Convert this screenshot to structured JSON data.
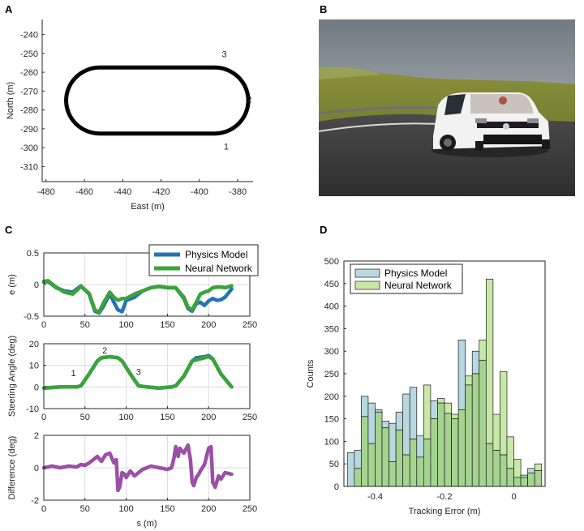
{
  "panels": {
    "A": {
      "letter": "A",
      "chart_data": {
        "type": "line",
        "xlabel": "East (m)",
        "ylabel": "North (m)",
        "xlim": [
          -482,
          -372
        ],
        "ylim": [
          -318,
          -232
        ],
        "xticks": [
          -480,
          -460,
          -440,
          -420,
          -400,
          -380
        ],
        "yticks": [
          -240,
          -250,
          -260,
          -270,
          -280,
          -290,
          -300,
          -310
        ],
        "track": {
          "straight_x": [
            -452,
            -392
          ],
          "center_y": -275,
          "radius": 17.5
        },
        "annotations": [
          {
            "text": "3",
            "x": -387,
            "y": -252
          },
          {
            "text": "2",
            "x": -374,
            "y": -276
          },
          {
            "text": "1",
            "x": -386,
            "y": -301
          }
        ],
        "grid": false
      }
    },
    "B": {
      "letter": "B",
      "photo": "race-car-on-track-photo",
      "colors": {
        "sky": "#8d969b",
        "grass": "#6d7a2a",
        "asphalt": "#3e3e3e",
        "car": "#f2f2f2"
      }
    },
    "C": {
      "letter": "C",
      "legend": [
        "Physics Model",
        "Neural Network"
      ],
      "colors": {
        "physics": "#2373b5",
        "neural": "#3aa33a",
        "difference": "#9b4fa6"
      },
      "chart_data": [
        {
          "type": "line",
          "xlabel": "",
          "ylabel": "e (m)",
          "xlim": [
            0,
            250
          ],
          "ylim": [
            -0.5,
            0.5
          ],
          "xticks": [
            0,
            50,
            100,
            150,
            200,
            250
          ],
          "yticks": [
            0.5,
            0,
            -0.5
          ],
          "grid": true,
          "legend_position": "top-right",
          "series": [
            {
              "name": "Physics Model",
              "x": [
                0,
                5,
                15,
                25,
                35,
                45,
                55,
                62,
                67,
                72,
                80,
                85,
                90,
                95,
                100,
                110,
                120,
                130,
                140,
                150,
                160,
                170,
                175,
                180,
                185,
                190,
                195,
                200,
                205,
                210,
                215,
                220,
                228
              ],
              "y": [
                0.04,
                0.05,
                -0.05,
                -0.1,
                -0.12,
                -0.02,
                -0.15,
                -0.42,
                -0.45,
                -0.35,
                -0.15,
                -0.28,
                -0.4,
                -0.43,
                -0.25,
                -0.2,
                -0.1,
                -0.05,
                -0.03,
                -0.05,
                -0.05,
                -0.22,
                -0.38,
                -0.42,
                -0.3,
                -0.28,
                -0.33,
                -0.26,
                -0.22,
                -0.25,
                -0.24,
                -0.2,
                -0.07
              ]
            },
            {
              "name": "Neural Network",
              "x": [
                0,
                5,
                15,
                25,
                35,
                45,
                55,
                62,
                67,
                72,
                80,
                85,
                90,
                95,
                100,
                110,
                120,
                130,
                140,
                150,
                160,
                170,
                175,
                180,
                185,
                190,
                195,
                200,
                205,
                210,
                215,
                220,
                228
              ],
              "y": [
                0.05,
                0.06,
                -0.04,
                -0.12,
                -0.15,
                -0.03,
                -0.14,
                -0.4,
                -0.44,
                -0.3,
                -0.12,
                -0.2,
                -0.25,
                -0.22,
                -0.22,
                -0.15,
                -0.1,
                -0.05,
                -0.03,
                -0.05,
                -0.05,
                -0.2,
                -0.36,
                -0.4,
                -0.28,
                -0.15,
                -0.12,
                -0.1,
                -0.05,
                -0.04,
                -0.04,
                -0.05,
                -0.02
              ]
            }
          ]
        },
        {
          "type": "line",
          "xlabel": "",
          "ylabel": "Steering Angle (deg)",
          "xlim": [
            0,
            250
          ],
          "ylim": [
            -10,
            20
          ],
          "xticks": [
            0,
            50,
            100,
            150,
            200,
            250
          ],
          "yticks": [
            20,
            10,
            0,
            -10
          ],
          "grid": true,
          "annotations": [
            {
              "text": "1",
              "x": 36,
              "y": 5
            },
            {
              "text": "2",
              "x": 74,
              "y": 15.5
            },
            {
              "text": "3",
              "x": 115,
              "y": 5.5
            }
          ],
          "series": [
            {
              "name": "Physics Model",
              "x": [
                0,
                20,
                40,
                45,
                55,
                65,
                70,
                80,
                90,
                95,
                105,
                115,
                125,
                140,
                155,
                160,
                170,
                180,
                185,
                195,
                200,
                205,
                215,
                228
              ],
              "y": [
                -0.5,
                0,
                0,
                0.5,
                6,
                12,
                13.5,
                14,
                13.5,
                12,
                6,
                0.5,
                0,
                -0.5,
                0,
                0.5,
                5,
                12,
                13.5,
                14,
                14.5,
                13,
                6,
                0
              ]
            },
            {
              "name": "Neural Network",
              "x": [
                0,
                20,
                40,
                45,
                55,
                65,
                70,
                80,
                90,
                95,
                105,
                115,
                125,
                140,
                155,
                160,
                170,
                180,
                185,
                195,
                200,
                205,
                215,
                228
              ],
              "y": [
                -0.5,
                0,
                0,
                0.5,
                6,
                12,
                13.5,
                14,
                13.5,
                12,
                6,
                0.5,
                0,
                -0.5,
                0,
                0.5,
                5,
                12,
                12.5,
                13.5,
                14,
                13,
                6,
                0
              ]
            }
          ]
        },
        {
          "type": "line",
          "xlabel": "s (m)",
          "ylabel": "Difference (deg)",
          "xlim": [
            0,
            250
          ],
          "ylim": [
            -2,
            2
          ],
          "xticks": [
            0,
            50,
            100,
            150,
            200,
            250
          ],
          "yticks": [
            2,
            0,
            -2
          ],
          "grid": true,
          "series": [
            {
              "name": "Difference",
              "x": [
                0,
                10,
                20,
                30,
                40,
                45,
                50,
                55,
                60,
                65,
                70,
                75,
                80,
                85,
                88,
                90,
                92,
                95,
                98,
                100,
                105,
                110,
                115,
                120,
                125,
                130,
                140,
                150,
                155,
                158,
                160,
                163,
                165,
                170,
                175,
                178,
                180,
                182,
                185,
                188,
                190,
                195,
                200,
                203,
                205,
                208,
                212,
                215,
                220,
                228
              ],
              "y": [
                0,
                0.1,
                0,
                0.1,
                0.05,
                0.2,
                0.15,
                0.3,
                0.5,
                0.7,
                0.4,
                0.8,
                0.9,
                0.3,
                0.5,
                -1.4,
                -1.2,
                -0.3,
                -0.4,
                -0.6,
                -0.2,
                -0.5,
                -0.3,
                -0.1,
                0,
                0.1,
                0,
                -0.1,
                0,
                0.6,
                1.3,
                0.7,
                1.2,
                0.9,
                1.4,
                0.5,
                -0.9,
                -1.1,
                -0.6,
                -0.4,
                -0.2,
                0.2,
                1.2,
                1.3,
                -0.9,
                -1.2,
                -0.5,
                -0.7,
                -0.3,
                -0.4
              ]
            }
          ]
        }
      ]
    },
    "D": {
      "letter": "D",
      "legend": [
        "Physics Model",
        "Neural Network"
      ],
      "colors": {
        "physics": "#b8d8e0",
        "neural": "#c8e8a8",
        "overlap": "#a5d490"
      },
      "chart_data": {
        "type": "bar",
        "xlabel": "Tracking Error (m)",
        "ylabel": "Counts",
        "xlim": [
          -0.49,
          0.09
        ],
        "ylim": [
          0,
          500
        ],
        "xticks": [
          -0.4,
          -0.2,
          0
        ],
        "xtick_labels": [
          "-0.4",
          "-0.2",
          "0"
        ],
        "yticks": [
          0,
          50,
          100,
          150,
          200,
          250,
          300,
          350,
          400,
          450,
          500
        ],
        "bin_edges": [
          -0.48,
          -0.46,
          -0.44,
          -0.42,
          -0.4,
          -0.38,
          -0.36,
          -0.34,
          -0.32,
          -0.3,
          -0.28,
          -0.26,
          -0.24,
          -0.22,
          -0.2,
          -0.18,
          -0.16,
          -0.14,
          -0.12,
          -0.1,
          -0.08,
          -0.06,
          -0.04,
          -0.02,
          0,
          0.02,
          0.04,
          0.06,
          0.08
        ],
        "grid": false,
        "legend_position": "top-left",
        "series": [
          {
            "name": "Physics Model",
            "values": [
              75,
              80,
              200,
              185,
              170,
              145,
              140,
              165,
              205,
              220,
              112,
              105,
              190,
              185,
              162,
              150,
              325,
              225,
              300,
              280,
              95,
              80,
              70,
              40,
              20,
              25,
              40,
              35
            ]
          },
          {
            "name": "Neural Network",
            "values": [
              0,
              40,
              155,
              95,
              165,
              130,
              55,
              125,
              70,
              105,
              65,
              225,
              150,
              195,
              185,
              160,
              170,
              245,
              250,
              325,
              460,
              160,
              255,
              110,
              60,
              20,
              30,
              50
            ]
          }
        ]
      }
    }
  }
}
